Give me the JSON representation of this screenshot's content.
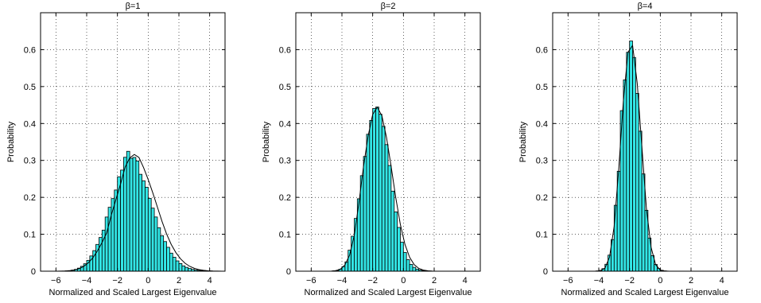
{
  "figure": {
    "bar_color": "#33e6e6",
    "bar_edge_color": "#000000",
    "curve_color": "#000000",
    "grid_style": "dotted"
  },
  "chart_data": [
    {
      "type": "bar",
      "title": "β=1",
      "xlabel": "Normalized and Scaled Largest Eigenvalue",
      "ylabel": "Probability",
      "xlim": [
        -7,
        5
      ],
      "ylim": [
        0,
        0.7
      ],
      "xticks": [
        "−6",
        "−4",
        "−2",
        "0",
        "2",
        "4"
      ],
      "yticks": [
        "0",
        "0.1",
        "0.2",
        "0.3",
        "0.4",
        "0.5",
        "0.6"
      ],
      "grid": true,
      "bin_width": 0.2,
      "bin_centers": [
        -5.9,
        -5.7,
        -5.5,
        -5.3,
        -5.1,
        -4.9,
        -4.7,
        -4.5,
        -4.3,
        -4.1,
        -3.9,
        -3.7,
        -3.5,
        -3.3,
        -3.1,
        -2.9,
        -2.7,
        -2.5,
        -2.3,
        -2.1,
        -1.9,
        -1.7,
        -1.5,
        -1.3,
        -1.1,
        -0.9,
        -0.7,
        -0.5,
        -0.3,
        -0.1,
        0.1,
        0.3,
        0.5,
        0.7,
        0.9,
        1.1,
        1.3,
        1.5,
        1.7,
        1.9,
        2.1,
        2.3,
        2.5,
        2.7,
        2.9,
        3.1,
        3.3,
        3.5,
        3.7,
        3.9,
        4.1,
        4.3,
        4.5
      ],
      "values": [
        0.0001,
        0.0002,
        0.0004,
        0.0008,
        0.0016,
        0.0029,
        0.005,
        0.0083,
        0.0132,
        0.0201,
        0.0294,
        0.0413,
        0.0558,
        0.0726,
        0.0913,
        0.1113,
        0.1467,
        0.1731,
        0.1967,
        0.2199,
        0.2557,
        0.2738,
        0.3085,
        0.3247,
        0.3057,
        0.3082,
        0.2986,
        0.2624,
        0.2449,
        0.2275,
        0.1972,
        0.1708,
        0.1468,
        0.1178,
        0.0961,
        0.0802,
        0.0647,
        0.0489,
        0.0378,
        0.0279,
        0.0207,
        0.0144,
        0.0104,
        0.0074,
        0.005,
        0.0033,
        0.0023,
        0.0015,
        0.0009,
        0.0006,
        0.0004,
        0.0002,
        0.0001
      ],
      "curve_x": [
        -6.3,
        -6.0,
        -5.7,
        -5.4,
        -5.1,
        -4.8,
        -4.5,
        -4.2,
        -3.9,
        -3.6,
        -3.3,
        -3.0,
        -2.7,
        -2.4,
        -2.1,
        -1.8,
        -1.5,
        -1.2,
        -0.9,
        -0.6,
        -0.3,
        0.0,
        0.3,
        0.6,
        0.9,
        1.2,
        1.5,
        1.8,
        2.1,
        2.4,
        2.7,
        3.0,
        3.3,
        3.6,
        3.9,
        4.2,
        4.5,
        4.8,
        5.0
      ],
      "curve_y": [
        0.0,
        0.0001,
        0.0002,
        0.0005,
        0.0014,
        0.0032,
        0.0067,
        0.0128,
        0.0224,
        0.0362,
        0.0549,
        0.0777,
        0.1034,
        0.1515,
        0.1936,
        0.2357,
        0.2819,
        0.3068,
        0.3162,
        0.308,
        0.2807,
        0.2484,
        0.2123,
        0.1737,
        0.135,
        0.1005,
        0.0725,
        0.0505,
        0.0337,
        0.0215,
        0.0132,
        0.0078,
        0.0044,
        0.0024,
        0.0012,
        0.0006,
        0.0003,
        0.0001,
        0.0001
      ]
    },
    {
      "type": "bar",
      "title": "β=2",
      "xlabel": "Normalized and Scaled Largest Eigenvalue",
      "ylabel": "Probability",
      "xlim": [
        -7,
        5
      ],
      "ylim": [
        0,
        0.7
      ],
      "xticks": [
        "−6",
        "−4",
        "−2",
        "0",
        "2",
        "4"
      ],
      "yticks": [
        "0",
        "0.1",
        "0.2",
        "0.3",
        "0.4",
        "0.5",
        "0.6"
      ],
      "grid": true,
      "bin_width": 0.2,
      "bin_centers": [
        -4.7,
        -4.5,
        -4.3,
        -4.1,
        -3.9,
        -3.7,
        -3.5,
        -3.3,
        -3.1,
        -2.9,
        -2.7,
        -2.5,
        -2.3,
        -2.1,
        -1.9,
        -1.7,
        -1.5,
        -1.3,
        -1.1,
        -0.9,
        -0.7,
        -0.5,
        -0.3,
        -0.1,
        0.1,
        0.3,
        0.5,
        0.7,
        0.9,
        1.1,
        1.3,
        1.5,
        1.7,
        1.9,
        2.1,
        2.3,
        2.5
      ],
      "values": [
        0.0002,
        0.0008,
        0.0021,
        0.0054,
        0.0122,
        0.0252,
        0.0569,
        0.0947,
        0.1429,
        0.1961,
        0.2588,
        0.3108,
        0.3709,
        0.4084,
        0.4406,
        0.4446,
        0.4251,
        0.3923,
        0.3429,
        0.2863,
        0.2168,
        0.1606,
        0.1185,
        0.0786,
        0.0507,
        0.0313,
        0.0184,
        0.0104,
        0.0056,
        0.0029,
        0.0015,
        0.0007,
        0.0003,
        0.0001,
        0.0001,
        0.0,
        0.0
      ],
      "curve_x": [
        -5.0,
        -4.7,
        -4.4,
        -4.1,
        -3.8,
        -3.5,
        -3.2,
        -2.9,
        -2.6,
        -2.3,
        -2.0,
        -1.7,
        -1.4,
        -1.1,
        -0.8,
        -0.5,
        -0.2,
        0.1,
        0.4,
        0.7,
        1.0,
        1.3,
        1.6,
        1.9,
        2.2,
        2.5,
        2.8
      ],
      "curve_y": [
        0.0,
        0.0002,
        0.0014,
        0.0054,
        0.0173,
        0.0438,
        0.0965,
        0.1838,
        0.2825,
        0.3652,
        0.4246,
        0.4441,
        0.4208,
        0.3621,
        0.2835,
        0.1995,
        0.1265,
        0.0725,
        0.0378,
        0.0178,
        0.0076,
        0.003,
        0.0011,
        0.0003,
        0.0001,
        0.0,
        0.0
      ]
    },
    {
      "type": "bar",
      "title": "β=4",
      "xlabel": "Normalized and Scaled Largest Eigenvalue",
      "ylabel": "Probability",
      "xlim": [
        -7,
        5
      ],
      "ylim": [
        0,
        0.7
      ],
      "xticks": [
        "−6",
        "−4",
        "−2",
        "0",
        "2",
        "4"
      ],
      "yticks": [
        "0",
        "0.1",
        "0.2",
        "0.3",
        "0.4",
        "0.5",
        "0.6"
      ],
      "grid": true,
      "bin_width": 0.2,
      "bin_centers": [
        -4.1,
        -3.9,
        -3.7,
        -3.5,
        -3.3,
        -3.1,
        -2.9,
        -2.7,
        -2.5,
        -2.3,
        -2.1,
        -1.9,
        -1.7,
        -1.5,
        -1.3,
        -1.1,
        -0.9,
        -0.7,
        -0.5,
        -0.3,
        -0.1,
        0.1,
        0.3,
        0.5,
        0.7
      ],
      "values": [
        0.0005,
        0.0021,
        0.0069,
        0.0188,
        0.0435,
        0.0857,
        0.1786,
        0.2706,
        0.4349,
        0.5181,
        0.5929,
        0.6234,
        0.5789,
        0.4816,
        0.3792,
        0.2634,
        0.165,
        0.0898,
        0.0422,
        0.0183,
        0.0071,
        0.0024,
        0.0007,
        0.0002,
        0.0
      ],
      "curve_x": [
        -4.5,
        -4.2,
        -3.9,
        -3.6,
        -3.3,
        -3.0,
        -2.7,
        -2.4,
        -2.1,
        -1.8,
        -1.5,
        -1.2,
        -0.9,
        -0.6,
        -0.3,
        0.0,
        0.3,
        0.6,
        0.9,
        1.2
      ],
      "curve_y": [
        0.0,
        0.0002,
        0.0012,
        0.0081,
        0.0382,
        0.1213,
        0.2777,
        0.4611,
        0.5931,
        0.6113,
        0.5093,
        0.3391,
        0.1691,
        0.0652,
        0.0175,
        0.0032,
        0.0004,
        0.0,
        0.0,
        0.0
      ]
    }
  ]
}
